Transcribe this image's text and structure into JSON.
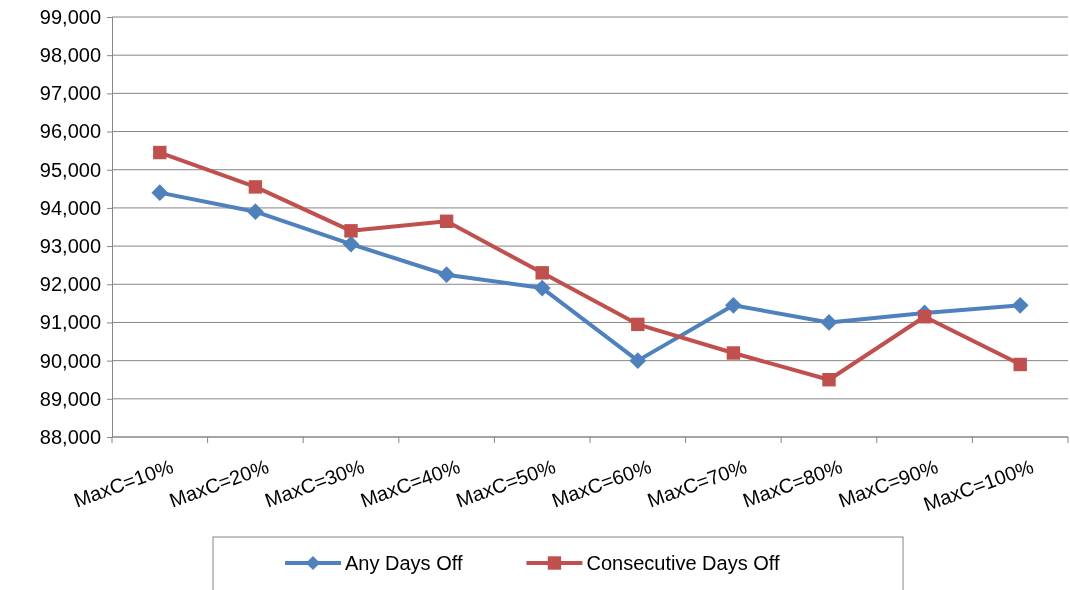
{
  "chart_data": {
    "type": "line",
    "categories": [
      "MaxC=10%",
      "MaxC=20%",
      "MaxC=30%",
      "MaxC=40%",
      "MaxC=50%",
      "MaxC=60%",
      "MaxC=70%",
      "MaxC=80%",
      "MaxC=90%",
      "MaxC=100%"
    ],
    "series": [
      {
        "name": "Any Days Off",
        "color": "#4f81bd",
        "marker": "diamond",
        "values": [
          94400,
          93900,
          93050,
          92250,
          91900,
          90000,
          91450,
          91000,
          91250,
          91450
        ]
      },
      {
        "name": "Consecutive Days Off",
        "color": "#c0504d",
        "marker": "square",
        "values": [
          95450,
          94550,
          93400,
          93650,
          92300,
          90950,
          90200,
          89500,
          91150,
          89900
        ]
      }
    ],
    "ylim": [
      88000,
      99000
    ],
    "yticks": [
      {
        "value": 88000,
        "label": "88,000"
      },
      {
        "value": 89000,
        "label": "89,000"
      },
      {
        "value": 90000,
        "label": "90,000"
      },
      {
        "value": 91000,
        "label": "91,000"
      },
      {
        "value": 92000,
        "label": "92,000"
      },
      {
        "value": 93000,
        "label": "93,000"
      },
      {
        "value": 94000,
        "label": "94,000"
      },
      {
        "value": 95000,
        "label": "95,000"
      },
      {
        "value": 96000,
        "label": "96,000"
      },
      {
        "value": 97000,
        "label": "97,000"
      },
      {
        "value": 98000,
        "label": "98,000"
      },
      {
        "value": 99000,
        "label": "99,000"
      }
    ],
    "grid": "y",
    "legend": "bottom",
    "line_style": "solid"
  }
}
